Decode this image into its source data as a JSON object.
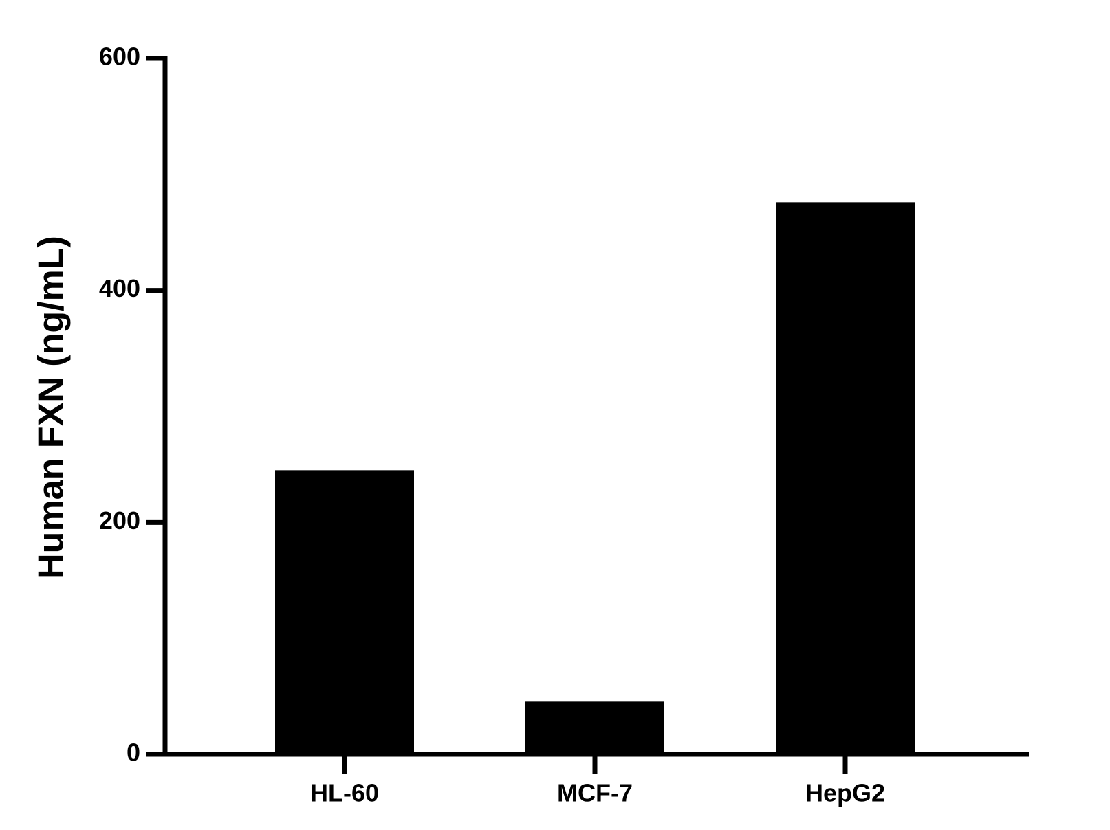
{
  "chart_data": {
    "type": "bar",
    "y_label": "Human FXN (ng/mL)",
    "categories": [
      "HL-60",
      "MCF-7",
      "HepG2"
    ],
    "values": [
      245,
      46,
      476
    ],
    "color": "#000000",
    "ylim": [
      0,
      600
    ],
    "yticks": [
      0,
      200,
      400,
      600
    ]
  }
}
